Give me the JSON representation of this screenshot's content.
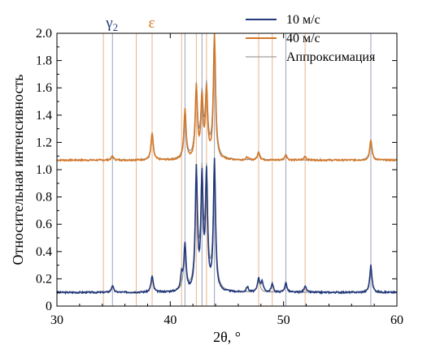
{
  "chart_data": {
    "type": "line",
    "title": "",
    "xlabel": "2θ, °",
    "ylabel": "Относительная интенсивность",
    "xlim": [
      30,
      60
    ],
    "ylim": [
      0,
      2.0
    ],
    "xticks": [
      30,
      40,
      50,
      60
    ],
    "yticks": [
      0,
      0.2,
      0.4,
      0.6,
      0.8,
      1.0,
      1.2,
      1.4,
      1.6,
      1.8,
      2.0
    ],
    "ytick_labels": [
      "0",
      "0.2",
      "0.4",
      "0.6",
      "0.8",
      "1.0",
      "1.2",
      "1.4",
      "1.6",
      "1.8",
      "2.0"
    ],
    "grid": false,
    "legend": "top-right",
    "legend_entries": [
      {
        "label": "10 м/с",
        "color": "#23397a"
      },
      {
        "label": "40 м/с",
        "color": "#d2782a"
      },
      {
        "label": "Аппроксимация",
        "color": "#8a8a8a"
      }
    ],
    "phase_labels": [
      {
        "text": "γ",
        "sub": "2",
        "x": 35.0,
        "color": "#23397a"
      },
      {
        "text": "ε",
        "x": 38.5,
        "color": "#d2782a"
      }
    ],
    "reference_lines": {
      "gamma2_color": "#9aa3b8",
      "epsilon_color": "#e8b48c",
      "gamma2_x": [
        34.9,
        41.3,
        43.9,
        57.7,
        42.8,
        50.2
      ],
      "epsilon_x": [
        34.1,
        37.0,
        38.4,
        41.0,
        42.3,
        43.2,
        47.8,
        49.0,
        51.9
      ]
    },
    "series": [
      {
        "name": "10 м/с",
        "color": "#23397a",
        "baseline": 0.1,
        "peaks": [
          [
            34.9,
            0.05
          ],
          [
            38.4,
            0.12
          ],
          [
            41.0,
            0.12
          ],
          [
            41.3,
            0.34
          ],
          [
            42.3,
            0.88
          ],
          [
            42.8,
            0.8
          ],
          [
            43.2,
            0.83
          ],
          [
            43.9,
            0.95
          ],
          [
            46.8,
            0.04
          ],
          [
            47.8,
            0.1
          ],
          [
            48.1,
            0.08
          ],
          [
            49.0,
            0.06
          ],
          [
            50.2,
            0.07
          ],
          [
            51.9,
            0.05
          ],
          [
            57.7,
            0.2
          ]
        ]
      },
      {
        "name": "40 м/с",
        "color": "#d2782a",
        "baseline": 1.07,
        "peaks": [
          [
            34.9,
            0.03
          ],
          [
            38.4,
            0.2
          ],
          [
            41.3,
            0.37
          ],
          [
            42.3,
            0.53
          ],
          [
            42.8,
            0.43
          ],
          [
            43.2,
            0.5
          ],
          [
            43.9,
            0.93
          ],
          [
            46.8,
            0.02
          ],
          [
            47.8,
            0.06
          ],
          [
            50.2,
            0.04
          ],
          [
            51.9,
            0.03
          ],
          [
            57.7,
            0.15
          ]
        ]
      },
      {
        "name": "Аппроксимация",
        "color": "#8a8a8a",
        "baselines": [
          0.1,
          1.07
        ],
        "peak_sets": [
          [
            [
              34.9,
              0.05
            ],
            [
              38.4,
              0.12
            ],
            [
              41.3,
              0.33
            ],
            [
              42.3,
              0.86
            ],
            [
              42.8,
              0.8
            ],
            [
              43.2,
              0.82
            ],
            [
              43.9,
              0.94
            ],
            [
              47.8,
              0.1
            ],
            [
              50.2,
              0.07
            ],
            [
              57.7,
              0.19
            ]
          ],
          [
            [
              34.9,
              0.03
            ],
            [
              38.4,
              0.19
            ],
            [
              41.3,
              0.36
            ],
            [
              42.3,
              0.52
            ],
            [
              42.8,
              0.44
            ],
            [
              43.2,
              0.5
            ],
            [
              43.9,
              0.92
            ],
            [
              47.8,
              0.06
            ],
            [
              50.2,
              0.04
            ],
            [
              57.7,
              0.15
            ]
          ]
        ]
      }
    ]
  }
}
